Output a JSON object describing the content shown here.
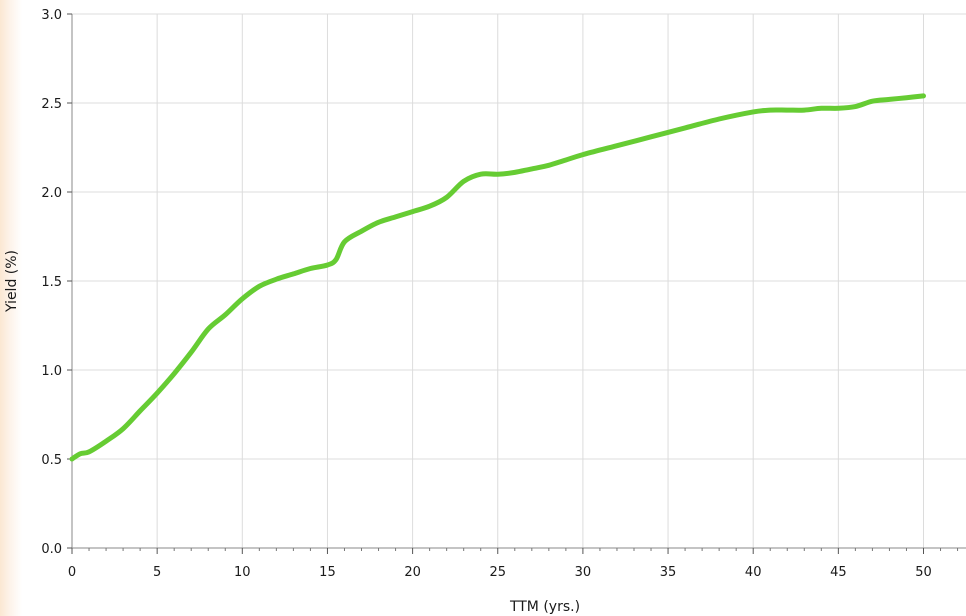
{
  "chart_data": {
    "type": "line",
    "title": "",
    "xlabel": "TTM (yrs.)",
    "ylabel": "Yield (%)",
    "xlim": [
      0,
      52
    ],
    "ylim": [
      0.0,
      3.0
    ],
    "x_ticks": [
      "0",
      "5",
      "10",
      "15",
      "20",
      "25",
      "30",
      "35",
      "40",
      "45",
      "50"
    ],
    "y_ticks": [
      "0.0",
      "0.5",
      "1.0",
      "1.5",
      "2.0",
      "2.5",
      "3.0"
    ],
    "grid": true,
    "line_color": "#66cc33",
    "series": [
      {
        "x": [
          0,
          0.5,
          1,
          2,
          3,
          4,
          5,
          6,
          7,
          8,
          9,
          10,
          11,
          12,
          13,
          14,
          15,
          15.5,
          16,
          17,
          18,
          19,
          20,
          21,
          22,
          23,
          24,
          25,
          26,
          27,
          28,
          29,
          30,
          32,
          34,
          36,
          38,
          40,
          41,
          42,
          43,
          44,
          45,
          46,
          47,
          48,
          49,
          50
        ],
        "y": [
          0.5,
          0.53,
          0.54,
          0.6,
          0.67,
          0.77,
          0.87,
          0.98,
          1.1,
          1.23,
          1.31,
          1.4,
          1.47,
          1.51,
          1.54,
          1.57,
          1.59,
          1.62,
          1.72,
          1.78,
          1.83,
          1.86,
          1.89,
          1.92,
          1.97,
          2.06,
          2.1,
          2.1,
          2.11,
          2.13,
          2.15,
          2.18,
          2.21,
          2.26,
          2.31,
          2.36,
          2.41,
          2.45,
          2.46,
          2.46,
          2.46,
          2.47,
          2.47,
          2.48,
          2.51,
          2.52,
          2.53,
          2.54
        ]
      }
    ]
  }
}
